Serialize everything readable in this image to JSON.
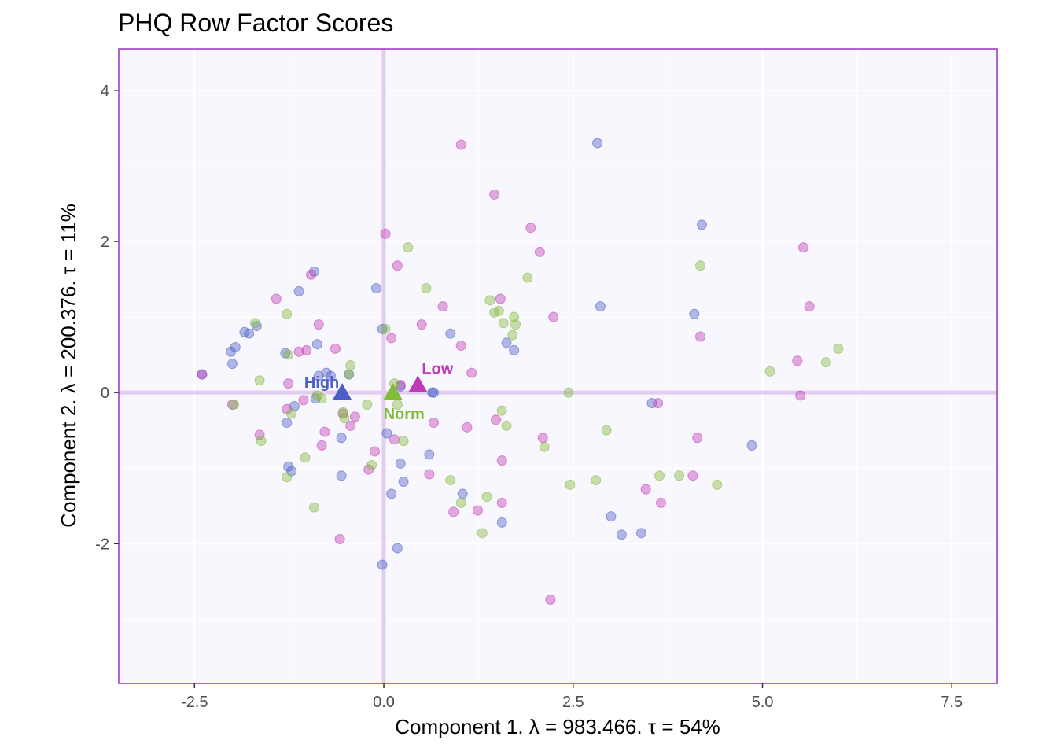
{
  "chart_data": {
    "type": "scatter",
    "title": "PHQ Row Factor Scores",
    "xlabel": "Component 1.   λ = 983.466.  τ = 54%",
    "ylabel": "Component 2.   λ = 200.376.  τ = 11%",
    "xlim": [
      -3.5,
      8.1
    ],
    "ylim": [
      -3.85,
      4.55
    ],
    "x_ticks": [
      -2.5,
      0.0,
      2.5,
      5.0,
      7.5
    ],
    "x_tick_labels": [
      "-2.5",
      "0.0",
      "2.5",
      "5.0",
      "7.5"
    ],
    "y_ticks": [
      -2,
      0,
      2,
      4
    ],
    "y_tick_labels": [
      "-2",
      "0",
      "2",
      "4"
    ],
    "grid": true,
    "colors": {
      "High": "#4d5fc7",
      "Low": "#c03cb6",
      "Norm": "#80bb3a",
      "panel_background": "#f8f7fd",
      "panel_border": "#9b30c4",
      "reference_lines": "#e3cdef"
    },
    "series": [
      {
        "name": "High",
        "x": [
          -2.4,
          -2.02,
          -2.0,
          -1.96,
          -1.84,
          -1.78,
          -1.68,
          -1.3,
          -1.28,
          -1.26,
          -1.22,
          -1.18,
          -1.12,
          -0.92,
          -0.88,
          -0.86,
          -0.9,
          -0.76,
          -0.7,
          -0.56,
          -0.56,
          -0.46,
          -0.1,
          -0.02,
          -0.02,
          0.04,
          0.1,
          0.18,
          0.22,
          0.22,
          0.26,
          0.6,
          0.64,
          0.66,
          0.88,
          1.04,
          1.56,
          1.62,
          1.72,
          2.82,
          2.86,
          3.0,
          3.14,
          3.4,
          3.54,
          4.1,
          4.2,
          4.86
        ],
        "y": [
          0.24,
          0.54,
          0.38,
          0.6,
          0.8,
          0.78,
          0.88,
          0.52,
          -0.4,
          -0.98,
          -1.04,
          -0.18,
          1.34,
          1.6,
          0.64,
          0.22,
          -0.08,
          0.26,
          0.22,
          -0.6,
          -1.1,
          0.24,
          1.38,
          0.84,
          -2.28,
          -0.54,
          -1.34,
          -2.06,
          -0.94,
          0.08,
          -1.18,
          -0.82,
          0.0,
          0.0,
          0.78,
          -1.34,
          -1.72,
          0.66,
          0.56,
          3.3,
          1.14,
          -1.64,
          -1.88,
          -1.86,
          -0.14,
          1.04,
          2.22,
          -0.7
        ]
      },
      {
        "name": "Low",
        "x": [
          -2.4,
          -2.0,
          -1.64,
          -1.42,
          -1.28,
          -1.26,
          -1.12,
          -1.06,
          -1.02,
          -0.96,
          -0.86,
          -0.82,
          -0.78,
          -0.64,
          -0.58,
          -0.54,
          -0.44,
          -0.38,
          -0.2,
          -0.12,
          0.02,
          0.1,
          0.14,
          0.18,
          0.22,
          0.5,
          0.6,
          0.66,
          0.78,
          0.92,
          1.02,
          1.02,
          1.1,
          1.16,
          1.24,
          1.46,
          1.48,
          1.54,
          1.56,
          1.56,
          1.94,
          2.06,
          2.1,
          2.2,
          2.24,
          3.46,
          3.62,
          3.66,
          4.08,
          4.14,
          4.18,
          5.46,
          5.5,
          5.54,
          5.62
        ],
        "y": [
          0.24,
          -0.16,
          -0.56,
          1.24,
          -0.22,
          0.12,
          0.54,
          -0.1,
          0.56,
          1.56,
          0.9,
          -0.7,
          -0.52,
          0.58,
          -1.94,
          -0.28,
          -0.44,
          -0.32,
          -1.02,
          -0.78,
          2.1,
          0.72,
          -0.62,
          1.68,
          0.1,
          0.9,
          -1.08,
          -0.4,
          1.14,
          -1.58,
          3.28,
          0.62,
          -0.46,
          0.26,
          -1.56,
          2.62,
          -0.36,
          1.24,
          -0.9,
          -1.46,
          2.18,
          1.86,
          -0.6,
          -2.74,
          1.0,
          -1.28,
          -0.14,
          -1.46,
          -1.1,
          -0.6,
          0.74,
          0.42,
          -0.04,
          1.92,
          1.14
        ]
      },
      {
        "name": "Norm",
        "x": [
          -1.98,
          -1.7,
          -1.64,
          -1.62,
          -1.28,
          -1.26,
          -1.22,
          -1.04,
          -1.28,
          -0.92,
          -0.88,
          -0.82,
          -0.54,
          -0.52,
          -0.46,
          -0.44,
          -0.22,
          -0.16,
          0.02,
          0.14,
          0.18,
          0.26,
          0.32,
          0.56,
          0.88,
          1.02,
          1.36,
          1.3,
          1.4,
          1.46,
          1.52,
          1.56,
          1.58,
          1.62,
          1.7,
          1.72,
          1.74,
          1.9,
          2.12,
          2.44,
          2.46,
          2.8,
          2.94,
          3.64,
          3.9,
          4.18,
          4.4,
          5.1,
          5.84,
          6.0
        ],
        "y": [
          -0.16,
          0.92,
          0.16,
          -0.64,
          1.04,
          0.5,
          -0.28,
          -0.86,
          -1.12,
          -1.52,
          -0.04,
          -0.08,
          -0.26,
          -0.34,
          0.24,
          0.36,
          -0.16,
          -0.96,
          0.84,
          0.12,
          -0.16,
          -0.64,
          1.92,
          1.38,
          -1.16,
          -1.46,
          -1.38,
          -1.86,
          1.22,
          1.06,
          1.08,
          -0.24,
          0.92,
          -0.44,
          0.76,
          1.0,
          0.9,
          1.52,
          -0.72,
          0.0,
          -1.22,
          -1.16,
          -0.5,
          -1.1,
          -1.1,
          1.68,
          -1.22,
          0.28,
          0.4,
          0.58
        ]
      }
    ],
    "group_means": [
      {
        "name": "High",
        "x": -0.55,
        "y": 0.0,
        "label": "High"
      },
      {
        "name": "Norm",
        "x": 0.12,
        "y": 0.0,
        "label": "Norm"
      },
      {
        "name": "Low",
        "x": 0.45,
        "y": 0.1,
        "label": "Low"
      }
    ]
  }
}
